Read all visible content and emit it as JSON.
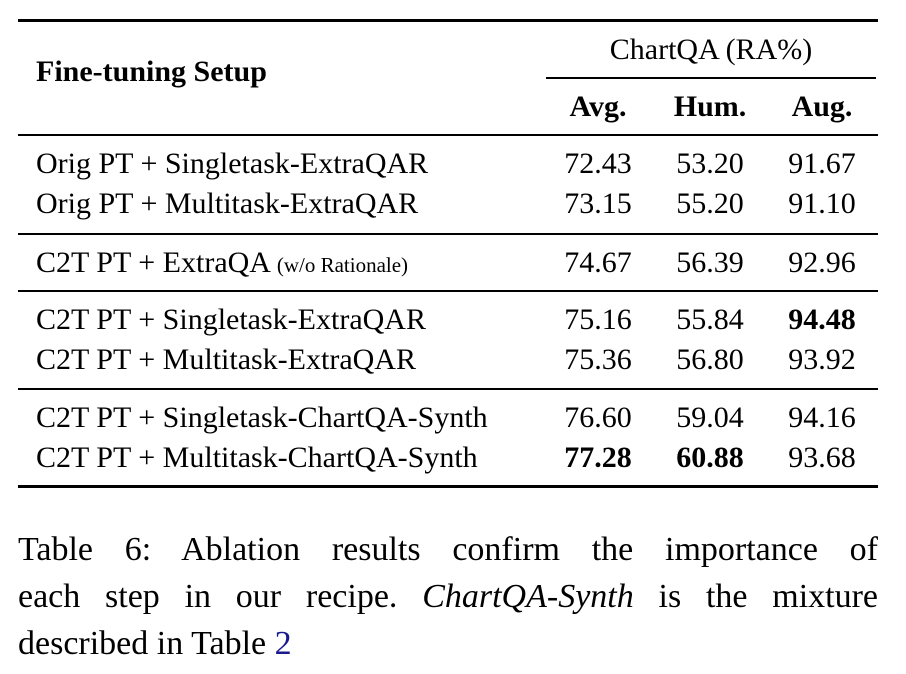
{
  "table": {
    "header": {
      "setup_label": "Fine-tuning Setup",
      "group_label": "ChartQA (RA%)",
      "columns": [
        "Avg.",
        "Hum.",
        "Aug."
      ]
    },
    "groups": [
      {
        "rows": [
          {
            "setup": "Orig PT + Singletask-ExtraQAR",
            "setup_note": "",
            "values": [
              "72.43",
              "53.20",
              "91.67"
            ],
            "bold": [
              false,
              false,
              false
            ]
          },
          {
            "setup": "Orig PT + Multitask-ExtraQAR",
            "setup_note": "",
            "values": [
              "73.15",
              "55.20",
              "91.10"
            ],
            "bold": [
              false,
              false,
              false
            ]
          }
        ]
      },
      {
        "rows": [
          {
            "setup": "C2T PT + ExtraQA",
            "setup_note": "(w/o Rationale)",
            "values": [
              "74.67",
              "56.39",
              "92.96"
            ],
            "bold": [
              false,
              false,
              false
            ]
          }
        ]
      },
      {
        "rows": [
          {
            "setup": "C2T PT + Singletask-ExtraQAR",
            "setup_note": "",
            "values": [
              "75.16",
              "55.84",
              "94.48"
            ],
            "bold": [
              false,
              false,
              true
            ]
          },
          {
            "setup": "C2T PT + Multitask-ExtraQAR",
            "setup_note": "",
            "values": [
              "75.36",
              "56.80",
              "93.92"
            ],
            "bold": [
              false,
              false,
              false
            ]
          }
        ]
      },
      {
        "rows": [
          {
            "setup": "C2T PT + Singletask-ChartQA-Synth",
            "setup_note": "",
            "values": [
              "76.60",
              "59.04",
              "94.16"
            ],
            "bold": [
              false,
              false,
              false
            ]
          },
          {
            "setup": "C2T PT + Multitask-ChartQA-Synth",
            "setup_note": "",
            "values": [
              "77.28",
              "60.88",
              "93.68"
            ],
            "bold": [
              true,
              true,
              false
            ]
          }
        ]
      }
    ]
  },
  "caption": {
    "line1": "Table 6:  Ablation results confirm the importance of",
    "line2_prefix": "each step in our recipe.",
    "line2_emph": "ChartQA-Synth",
    "line2_suffix": "is the mixture",
    "line3_prefix": "described in Table",
    "line3_ref": "2"
  },
  "colors": {
    "text": "#000000",
    "reference_link": "#1a1a8c",
    "background": "#ffffff"
  }
}
